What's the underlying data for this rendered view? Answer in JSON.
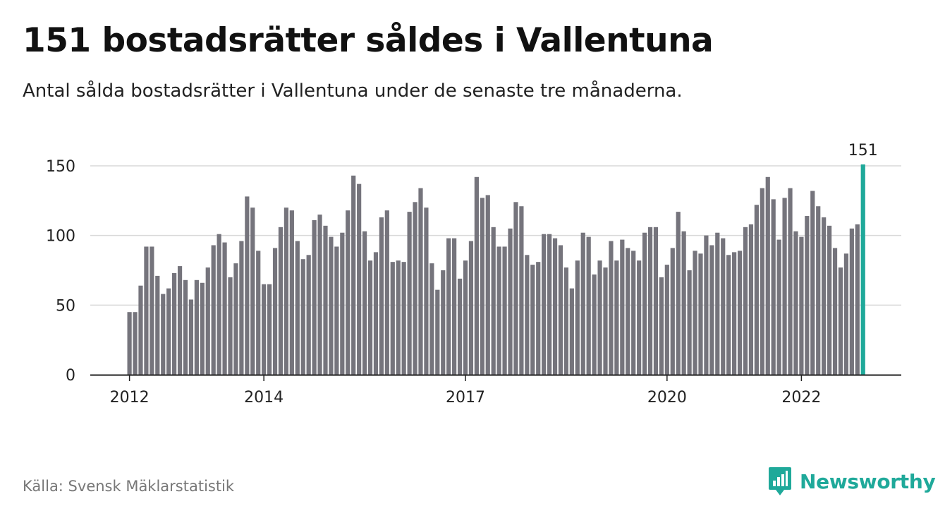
{
  "header": {
    "title": "151 bostadsrätter såldes i Vallentuna",
    "subtitle": "Antal sålda bostadsrätter i Vallentuna under de senaste tre månaderna."
  },
  "footer": {
    "source": "Källa: Svensk Mäklarstatistik",
    "brand": "Newsworthy"
  },
  "colors": {
    "bar": "#75747c",
    "highlight": "#1fa99a",
    "grid": "#d9d9d9",
    "axis": "#222222"
  },
  "chart_data": {
    "type": "bar",
    "title": "151 bostadsrätter såldes i Vallentuna",
    "subtitle": "Antal sålda bostadsrätter i Vallentuna under de senaste tre månaderna.",
    "xlabel": "",
    "ylabel": "",
    "ylim": [
      0,
      150
    ],
    "yticks": [
      0,
      50,
      100,
      150
    ],
    "grid": true,
    "x_tick_labels": [
      {
        "label": "2012",
        "index": 0
      },
      {
        "label": "2014",
        "index": 24
      },
      {
        "label": "2017",
        "index": 60
      },
      {
        "label": "2020",
        "index": 96
      },
      {
        "label": "2022",
        "index": 120
      }
    ],
    "highlight_index": 131,
    "highlight_label": "151",
    "values": [
      45,
      45,
      64,
      92,
      92,
      71,
      58,
      62,
      73,
      78,
      68,
      54,
      68,
      66,
      77,
      93,
      101,
      95,
      70,
      80,
      96,
      128,
      120,
      89,
      65,
      65,
      91,
      106,
      120,
      118,
      96,
      83,
      86,
      111,
      115,
      107,
      99,
      92,
      102,
      118,
      143,
      137,
      103,
      82,
      88,
      113,
      118,
      81,
      82,
      81,
      117,
      124,
      134,
      120,
      80,
      61,
      75,
      98,
      98,
      69,
      82,
      96,
      142,
      127,
      129,
      106,
      92,
      92,
      105,
      124,
      121,
      86,
      79,
      81,
      101,
      101,
      98,
      93,
      77,
      62,
      82,
      102,
      99,
      72,
      82,
      77,
      96,
      82,
      97,
      91,
      89,
      82,
      102,
      106,
      106,
      70,
      79,
      91,
      117,
      103,
      75,
      89,
      87,
      100,
      93,
      102,
      98,
      86,
      88,
      89,
      106,
      108,
      122,
      134,
      142,
      126,
      97,
      127,
      134,
      103,
      99,
      114,
      132,
      121,
      113,
      107,
      91,
      77,
      87,
      105,
      108,
      151
    ]
  }
}
